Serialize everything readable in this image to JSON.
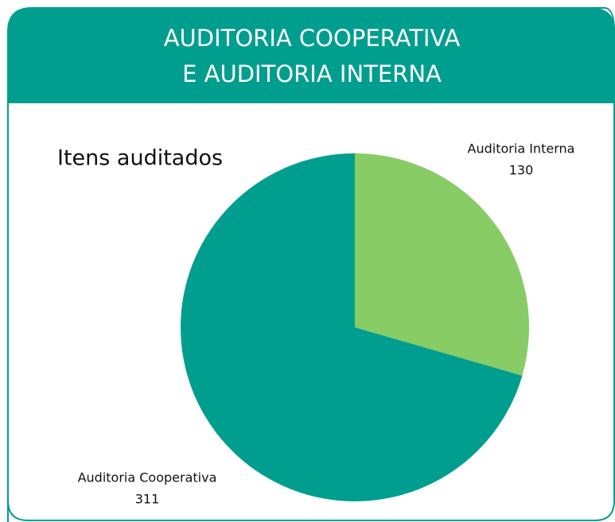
{
  "header": {
    "title_lines": [
      "AUDITORIA COOPERATIVA",
      "E AUDITORIA INTERNA"
    ]
  },
  "chart_data": {
    "type": "pie",
    "title": "Itens auditados",
    "categories": [
      "Auditoria Interna",
      "Auditoria Cooperativa"
    ],
    "values": [
      130,
      311
    ],
    "colors": [
      "#88cc66",
      "#009e8e"
    ]
  }
}
